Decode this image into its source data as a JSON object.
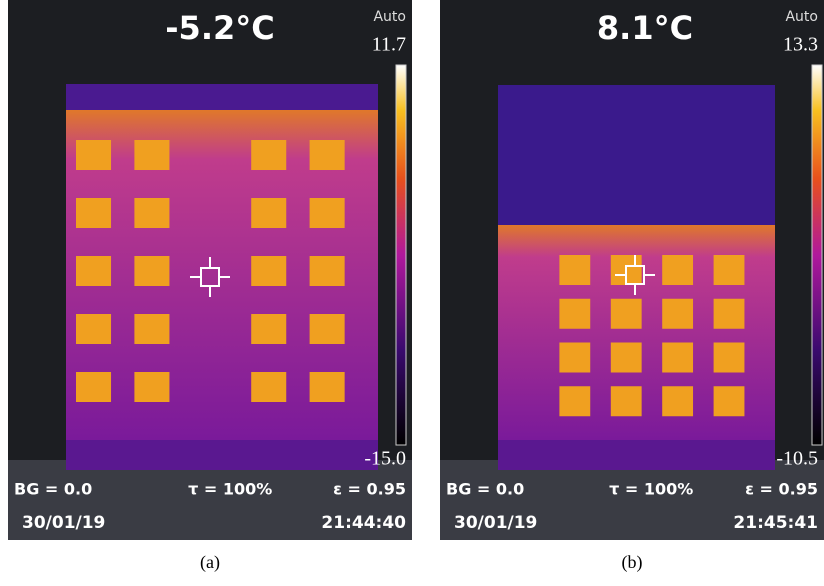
{
  "panels": [
    {
      "temperature": "-5.2°C",
      "mode": "Auto",
      "scale_max": "11.7",
      "scale_min": "-15.0",
      "background": "BG = 0.0",
      "transmission": "τ = 100%",
      "emissivity": "ε = 0.95",
      "date": "30/01/19",
      "time": "21:44:40",
      "label": "(a)"
    },
    {
      "temperature": "8.1°C",
      "mode": "Auto",
      "scale_max": "13.3",
      "scale_min": "-10.5",
      "background": "BG = 0.0",
      "transmission": "τ = 100%",
      "emissivity": "ε = 0.95",
      "date": "30/01/19",
      "time": "21:45:41",
      "label": "(b)"
    }
  ]
}
